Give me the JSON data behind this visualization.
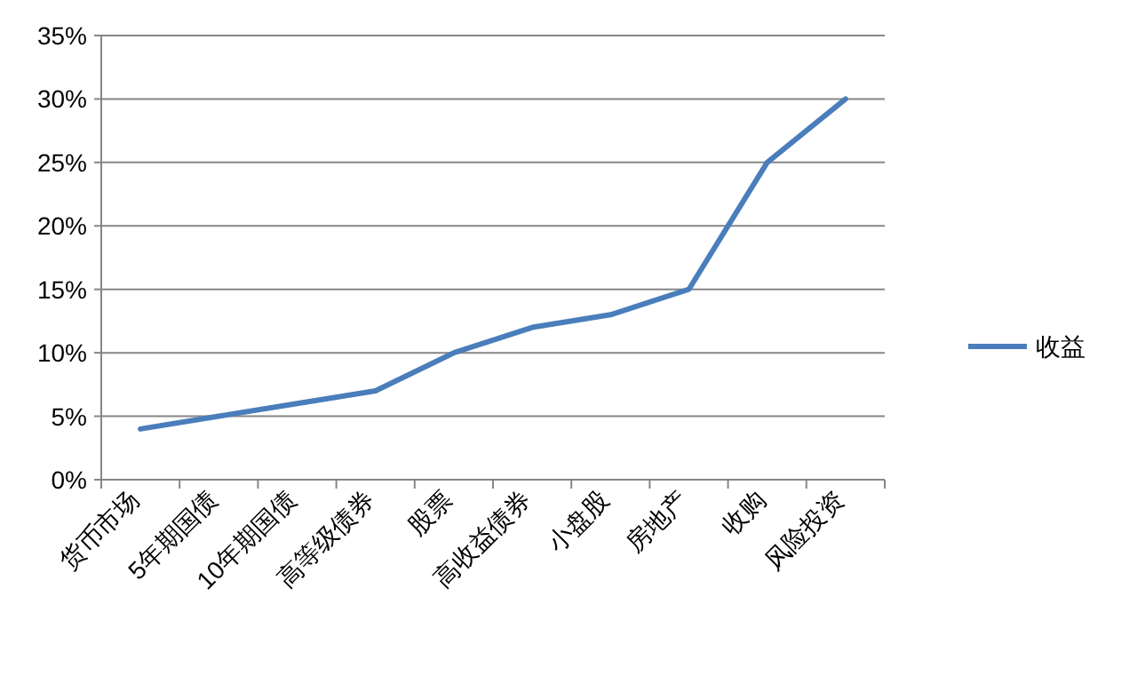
{
  "chart_data": {
    "type": "line",
    "categories": [
      "货币市场",
      "5年期国债",
      "10年期国债",
      "高等级债券",
      "股票",
      "高收益债券",
      "小盘股",
      "房地产",
      "收购",
      "风险投资"
    ],
    "series": [
      {
        "name": "收益",
        "color": "#4a7ebb",
        "values": [
          4,
          5,
          6,
          7,
          10,
          12,
          13,
          15,
          25,
          30
        ]
      }
    ],
    "ylim": [
      0,
      35
    ],
    "yticks": [
      {
        "value": 0,
        "label": "0%"
      },
      {
        "value": 5,
        "label": "5%"
      },
      {
        "value": 10,
        "label": "10%"
      },
      {
        "value": 15,
        "label": "15%"
      },
      {
        "value": 20,
        "label": "20%"
      },
      {
        "value": 25,
        "label": "25%"
      },
      {
        "value": 30,
        "label": "30%"
      },
      {
        "value": 35,
        "label": "35%"
      }
    ],
    "grid": "y",
    "legend": "right"
  }
}
